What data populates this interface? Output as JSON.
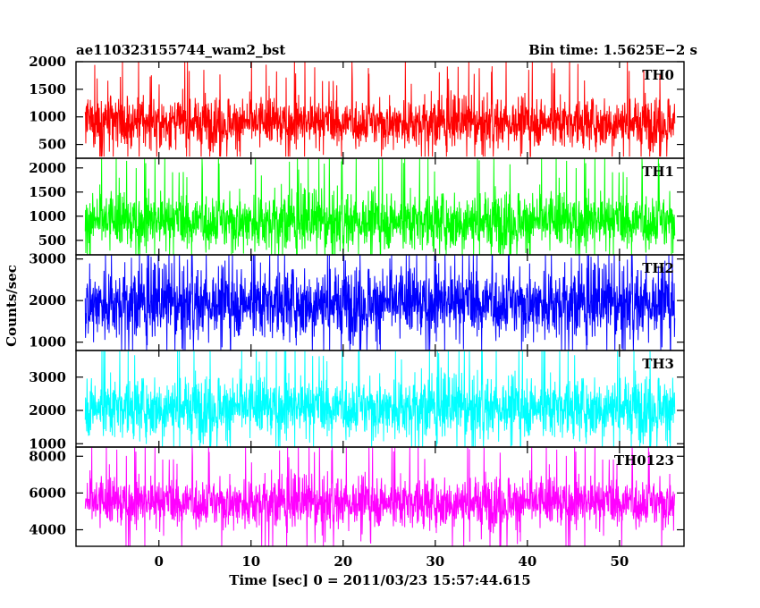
{
  "header": {
    "title_left": "ae110323155744_wam2_bst",
    "title_right": "Bin time: 1.5625E−2 s"
  },
  "axes": {
    "xlabel": "Time [sec] 0 = 2011/03/23 15:57:44.615",
    "ylabel": "Counts/sec"
  },
  "chart_data": {
    "type": "line",
    "title": "ae110323155744_wam2_bst",
    "subtitle": "Bin time: 1.5625E−2 s",
    "xlabel": "Time [sec] 0 = 2011/03/23 15:57:44.615",
    "ylabel": "Counts/sec",
    "xlim": [
      -9,
      57
    ],
    "x_range_data": [
      -8,
      56
    ],
    "xticks": [
      0,
      10,
      20,
      30,
      40,
      50
    ],
    "grid": false,
    "panels": [
      {
        "name": "TH0",
        "color": "#ff0000",
        "ylim": [
          250,
          2000
        ],
        "yticks": [
          500,
          1000,
          1500,
          2000
        ],
        "mean": 900,
        "typical_low": 450,
        "typical_high": 1450,
        "min": 280,
        "max": 2000
      },
      {
        "name": "TH1",
        "color": "#00ff00",
        "ylim": [
          200,
          2200
        ],
        "yticks": [
          500,
          1000,
          1500,
          2000
        ],
        "mean": 900,
        "typical_low": 350,
        "typical_high": 1700,
        "min": 200,
        "max": 2200
      },
      {
        "name": "TH2",
        "color": "#0000ff",
        "ylim": [
          800,
          3100
        ],
        "yticks": [
          1000,
          2000,
          3000
        ],
        "mean": 1950,
        "typical_low": 1000,
        "typical_high": 2900,
        "min": 800,
        "max": 3100
      },
      {
        "name": "TH3",
        "color": "#00ffff",
        "ylim": [
          900,
          3800
        ],
        "yticks": [
          1000,
          2000,
          3000
        ],
        "mean": 2100,
        "typical_low": 1150,
        "typical_high": 3200,
        "min": 900,
        "max": 3800
      },
      {
        "name": "TH0123",
        "color": "#ff00ff",
        "ylim": [
          3100,
          8500
        ],
        "yticks": [
          4000,
          6000,
          8000
        ],
        "mean": 5500,
        "typical_low": 4100,
        "typical_high": 7200,
        "min": 3100,
        "max": 8500
      }
    ]
  }
}
